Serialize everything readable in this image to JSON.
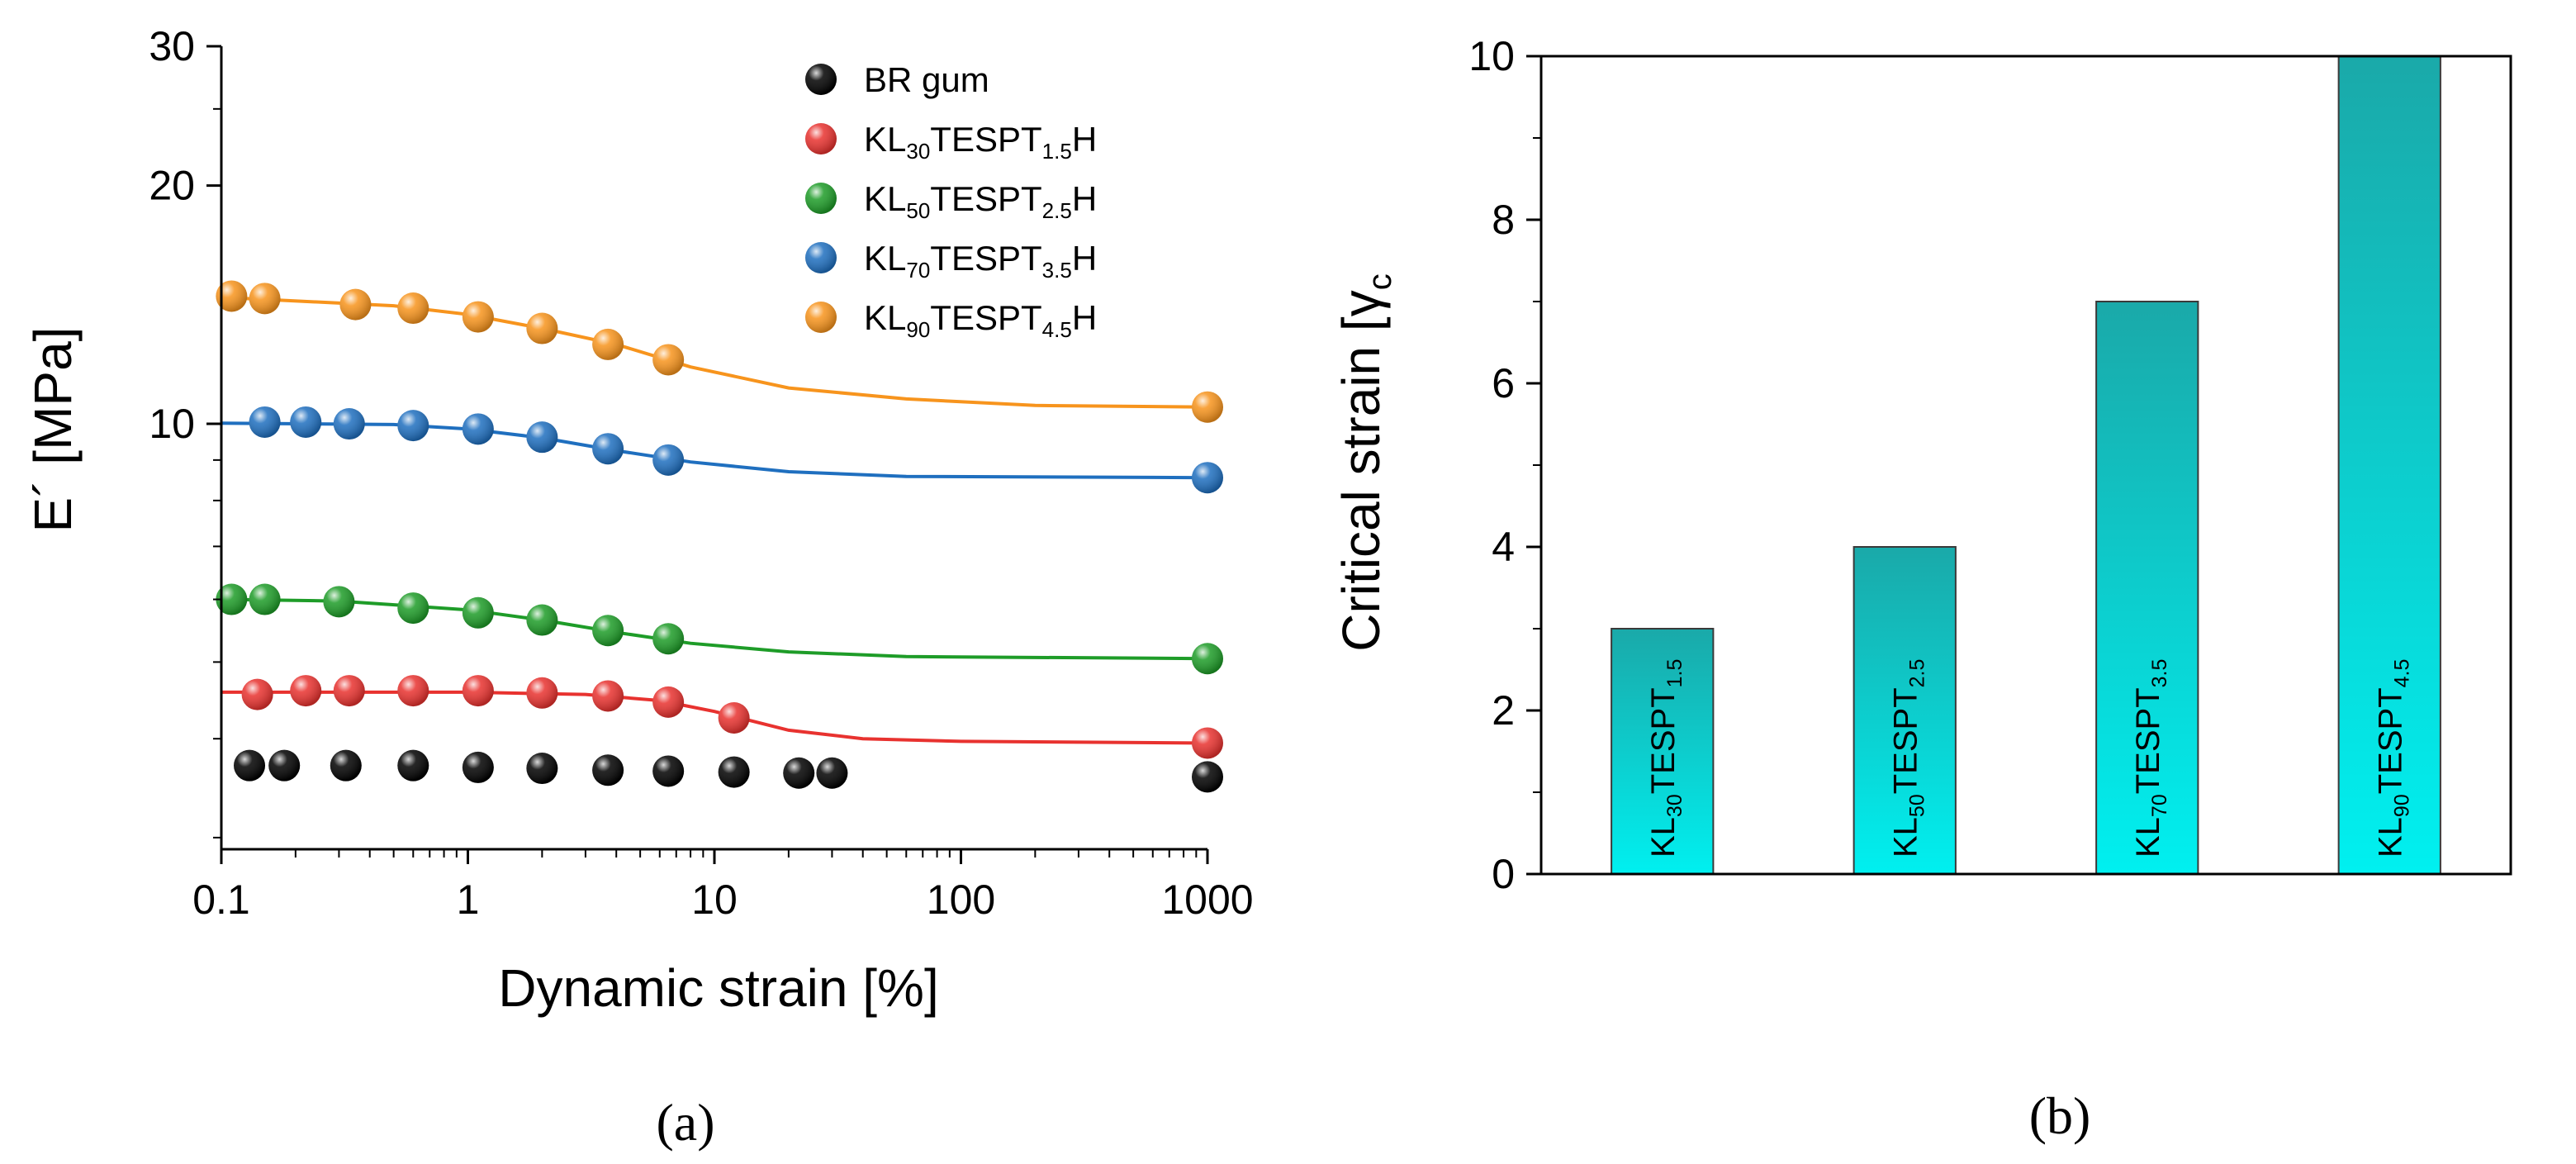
{
  "chart_data": [
    {
      "type": "scatter",
      "panel_label": "(a)",
      "xscale": "log",
      "yscale": "log",
      "xlim": [
        0.1,
        1000
      ],
      "ylim": [
        2.9,
        30
      ],
      "xticks": [
        0.1,
        1,
        10,
        100,
        1000
      ],
      "xtick_labels": [
        "0.1",
        "1",
        "10",
        "100",
        "1000"
      ],
      "yticks": [
        10,
        20,
        30
      ],
      "ytick_labels": [
        "10",
        "20",
        "30"
      ],
      "xlabel": "Dynamic strain [%]",
      "ylabel": "E´ [MPa]",
      "legend_position": "top-right",
      "series": [
        {
          "name": "BR gum",
          "legend": {
            "base": "BR gum",
            "parts": []
          },
          "color": "#000000",
          "fit": false,
          "points": [
            [
              0.13,
              3.7
            ],
            [
              0.18,
              3.7
            ],
            [
              0.32,
              3.7
            ],
            [
              0.6,
              3.7
            ],
            [
              1.1,
              3.68
            ],
            [
              2.0,
              3.67
            ],
            [
              3.7,
              3.65
            ],
            [
              6.5,
              3.64
            ],
            [
              12,
              3.63
            ],
            [
              22,
              3.62
            ],
            [
              30,
              3.62
            ],
            [
              1000,
              3.58
            ]
          ]
        },
        {
          "name": "KL30TESPT1.5H",
          "legend": {
            "base": "KL",
            "parts": [
              [
                "30",
                "sub"
              ],
              [
                "TESPT",
                ""
              ],
              [
                "1.5",
                "sub"
              ],
              [
                "H",
                ""
              ]
            ]
          },
          "color": "#e8322f",
          "fit": true,
          "points": [
            [
              0.14,
              4.55
            ],
            [
              0.22,
              4.6
            ],
            [
              0.33,
              4.6
            ],
            [
              0.6,
              4.6
            ],
            [
              1.1,
              4.6
            ],
            [
              2.0,
              4.57
            ],
            [
              3.7,
              4.53
            ],
            [
              6.5,
              4.45
            ],
            [
              12,
              4.25
            ],
            [
              1000,
              3.95
            ]
          ],
          "fit_points": [
            [
              0.1,
              4.58
            ],
            [
              1,
              4.58
            ],
            [
              3,
              4.55
            ],
            [
              6,
              4.47
            ],
            [
              10,
              4.33
            ],
            [
              20,
              4.1
            ],
            [
              40,
              4.0
            ],
            [
              100,
              3.97
            ],
            [
              1000,
              3.95
            ]
          ]
        },
        {
          "name": "KL50TESPT2.5H",
          "legend": {
            "base": "KL",
            "parts": [
              [
                "50",
                "sub"
              ],
              [
                "TESPT",
                ""
              ],
              [
                "2.5",
                "sub"
              ],
              [
                "H",
                ""
              ]
            ]
          },
          "color": "#1e9c28",
          "fit": true,
          "points": [
            [
              0.11,
              6.0
            ],
            [
              0.15,
              6.0
            ],
            [
              0.3,
              5.96
            ],
            [
              0.6,
              5.85
            ],
            [
              1.1,
              5.77
            ],
            [
              2.0,
              5.65
            ],
            [
              3.7,
              5.48
            ],
            [
              6.5,
              5.35
            ],
            [
              1000,
              5.05
            ]
          ],
          "fit_points": [
            [
              0.1,
              6.0
            ],
            [
              0.3,
              5.97
            ],
            [
              1,
              5.82
            ],
            [
              2,
              5.65
            ],
            [
              4,
              5.45
            ],
            [
              8,
              5.28
            ],
            [
              20,
              5.15
            ],
            [
              60,
              5.08
            ],
            [
              1000,
              5.05
            ]
          ]
        },
        {
          "name": "KL70TESPT3.5H",
          "legend": {
            "base": "KL",
            "parts": [
              [
                "70",
                "sub"
              ],
              [
                "TESPT",
                ""
              ],
              [
                "3.5",
                "sub"
              ],
              [
                "H",
                ""
              ]
            ]
          },
          "color": "#1f6fbf",
          "fit": true,
          "points": [
            [
              0.15,
              10.05
            ],
            [
              0.22,
              10.05
            ],
            [
              0.33,
              10.0
            ],
            [
              0.6,
              9.95
            ],
            [
              1.1,
              9.85
            ],
            [
              2.0,
              9.62
            ],
            [
              3.7,
              9.3
            ],
            [
              6.5,
              9.0
            ],
            [
              1000,
              8.55
            ]
          ],
          "fit_points": [
            [
              0.1,
              10.02
            ],
            [
              0.5,
              9.98
            ],
            [
              1,
              9.85
            ],
            [
              2,
              9.6
            ],
            [
              4,
              9.25
            ],
            [
              8,
              8.95
            ],
            [
              20,
              8.7
            ],
            [
              60,
              8.58
            ],
            [
              1000,
              8.55
            ]
          ]
        },
        {
          "name": "KL90TESPT4.5H",
          "legend": {
            "base": "KL",
            "parts": [
              [
                "90",
                "sub"
              ],
              [
                "TESPT",
                ""
              ],
              [
                "4.5",
                "sub"
              ],
              [
                "H",
                ""
              ]
            ]
          },
          "color": "#f7941d",
          "fit": true,
          "points": [
            [
              0.11,
              14.5
            ],
            [
              0.15,
              14.4
            ],
            [
              0.35,
              14.15
            ],
            [
              0.6,
              14.0
            ],
            [
              1.1,
              13.65
            ],
            [
              2.0,
              13.2
            ],
            [
              3.7,
              12.6
            ],
            [
              6.5,
              12.05
            ],
            [
              1000,
              10.5
            ]
          ],
          "fit_points": [
            [
              0.1,
              14.45
            ],
            [
              0.5,
              14.1
            ],
            [
              1,
              13.75
            ],
            [
              2,
              13.2
            ],
            [
              4,
              12.6
            ],
            [
              8,
              11.8
            ],
            [
              20,
              11.1
            ],
            [
              60,
              10.75
            ],
            [
              200,
              10.55
            ],
            [
              1000,
              10.5
            ]
          ]
        }
      ]
    },
    {
      "type": "bar",
      "panel_label": "(b)",
      "categories": [
        "KL30TESPT1.5",
        "KL50TESPT2.5",
        "KL70TESPT3.5",
        "KL90TESPT4.5"
      ],
      "category_labels": [
        {
          "base": "KL",
          "parts": [
            [
              "30",
              "sub"
            ],
            [
              "TESPT",
              ""
            ],
            [
              "1.5",
              "sub"
            ]
          ]
        },
        {
          "base": "KL",
          "parts": [
            [
              "50",
              "sub"
            ],
            [
              "TESPT",
              ""
            ],
            [
              "2.5",
              "sub"
            ]
          ]
        },
        {
          "base": "KL",
          "parts": [
            [
              "70",
              "sub"
            ],
            [
              "TESPT",
              ""
            ],
            [
              "3.5",
              "sub"
            ]
          ]
        },
        {
          "base": "KL",
          "parts": [
            [
              "90",
              "sub"
            ],
            [
              "TESPT",
              ""
            ],
            [
              "4.5",
              "sub"
            ]
          ]
        }
      ],
      "values": [
        3,
        4,
        7,
        10
      ],
      "ylim": [
        0,
        10
      ],
      "yticks": [
        0,
        2,
        4,
        6,
        8,
        10
      ],
      "ytick_labels": [
        "0",
        "2",
        "4",
        "6",
        "8",
        "10"
      ],
      "ylabel": {
        "base": "Critical strain [",
        "symbol": "γ",
        "sub": "c"
      },
      "bar_color_top": "#1aa9a9",
      "bar_color_bottom": "#00f0f0"
    }
  ]
}
